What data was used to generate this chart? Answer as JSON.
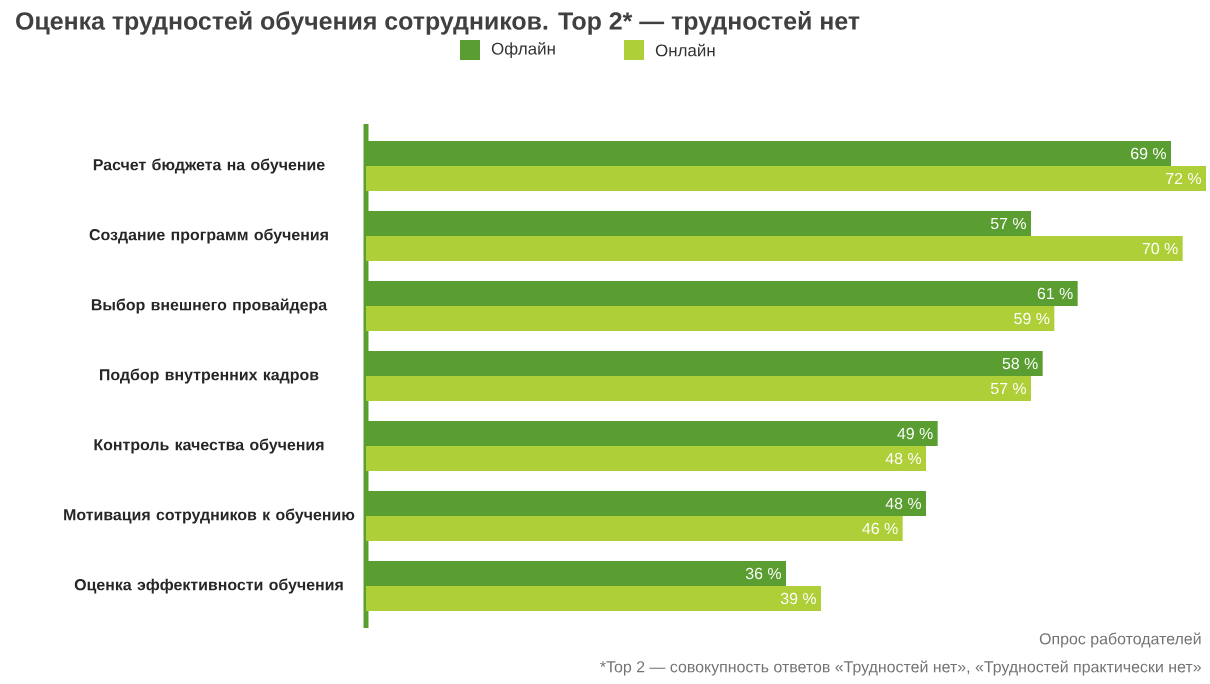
{
  "chart_data": {
    "type": "bar",
    "orientation": "horizontal",
    "title": "Оценка трудностей обучения сотрудников. Top 2* — трудностей нет",
    "categories": [
      "Расчет бюджета на обучение",
      "Создание программ обучения",
      "Выбор внешнего провайдера",
      "Подбор внутренних кадров",
      "Контроль качества обучения",
      "Мотивация сотрудников к обучению",
      "Оценка эффективности обучения"
    ],
    "series": [
      {
        "name": "Офлайн",
        "color": "#5a9e32",
        "values": [
          69,
          57,
          61,
          58,
          49,
          48,
          36
        ],
        "value_labels": [
          "69 %",
          "57 %",
          "61 %",
          "58 %",
          "49 %",
          "48 %",
          "36 %"
        ]
      },
      {
        "name": "Онлайн",
        "color": "#afcf38",
        "values": [
          72,
          70,
          59,
          57,
          48,
          46,
          39
        ],
        "value_labels": [
          "72 %",
          "70 %",
          "59 %",
          "57 %",
          "48 %",
          "46 %",
          "39 %"
        ]
      }
    ],
    "legend": "top",
    "annotations": [
      "Опрос работодателей",
      "*Top 2 — совокупность ответов «Трудностей нет», «Трудностей практически нет»"
    ]
  }
}
